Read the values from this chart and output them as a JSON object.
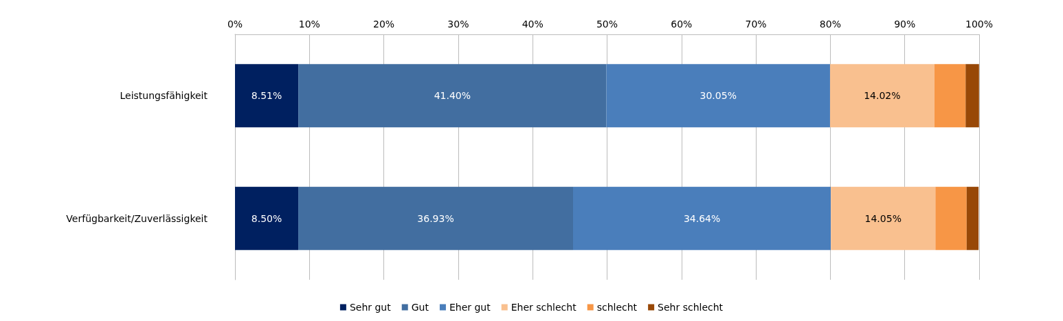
{
  "chart_data": {
    "type": "bar",
    "orientation": "horizontal",
    "stacked": true,
    "categories": [
      "Leistungsfähigkeit",
      "Verfügbarkeit/Zuverlässigkeit"
    ],
    "series": [
      {
        "name": "Sehr gut",
        "color": "#002060",
        "values": [
          8.51,
          8.5
        ],
        "value_labels": [
          "8.51%",
          "8.50%"
        ]
      },
      {
        "name": "Gut",
        "color": "#426ea0",
        "values": [
          41.4,
          36.93
        ],
        "value_labels": [
          "41.40%",
          "36.93%"
        ]
      },
      {
        "name": "Eher gut",
        "color": "#4a7ebb",
        "values": [
          30.05,
          34.64
        ],
        "value_labels": [
          "30.05%",
          "34.64%"
        ]
      },
      {
        "name": "Eher schlecht",
        "color": "#f9c08f",
        "values": [
          14.02,
          14.05
        ],
        "value_labels": [
          "14.02%",
          "14.05%"
        ]
      },
      {
        "name": "schlecht",
        "color": "#f79646",
        "values": [
          4.2,
          4.2
        ]
      },
      {
        "name": "Sehr schlecht",
        "color": "#984807",
        "values": [
          1.8,
          1.6
        ]
      }
    ],
    "xlim": [
      0,
      100
    ],
    "xticks": [
      {
        "value": 0,
        "label": "0%"
      },
      {
        "value": 10,
        "label": "10%"
      },
      {
        "value": 20,
        "label": "20%"
      },
      {
        "value": 30,
        "label": "30%"
      },
      {
        "value": 40,
        "label": "40%"
      },
      {
        "value": 50,
        "label": "50%"
      },
      {
        "value": 60,
        "label": "60%"
      },
      {
        "value": 70,
        "label": "70%"
      },
      {
        "value": 80,
        "label": "80%"
      },
      {
        "value": 90,
        "label": "90%"
      },
      {
        "value": 100,
        "label": "100%"
      }
    ],
    "grid": "x",
    "legend": "bottom"
  }
}
